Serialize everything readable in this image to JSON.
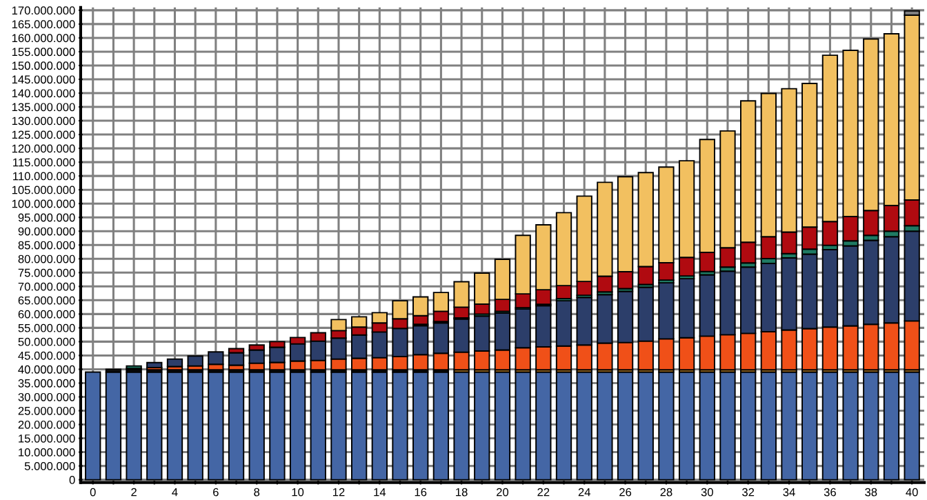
{
  "chart_data": {
    "type": "bar",
    "stacked": true,
    "grid": true,
    "categories": [
      "0",
      null,
      "2",
      null,
      "4",
      null,
      "6",
      null,
      "8",
      null,
      "10",
      null,
      "12",
      null,
      "14",
      null,
      "16",
      null,
      "18",
      null,
      "20",
      null,
      "22",
      null,
      "24",
      null,
      "26",
      null,
      "28",
      null,
      "30",
      null,
      "32",
      null,
      "34",
      null,
      "36",
      null,
      "38",
      null,
      "40"
    ],
    "ylim": [
      -1000000,
      171000000
    ],
    "yticks": [
      0,
      {
        "value": 5000000,
        "label": "5.000.000"
      },
      {
        "value": 10000000,
        "label": "10.000.000"
      },
      {
        "value": 15000000,
        "label": "15.000.000"
      },
      {
        "value": 20000000,
        "label": "20.000.000"
      },
      {
        "value": 25000000,
        "label": "25.000.000"
      },
      {
        "value": 30000000,
        "label": "30.000.000"
      },
      {
        "value": 35000000,
        "label": "35.000.000"
      },
      {
        "value": 40000000,
        "label": "40.000.000"
      },
      {
        "value": 45000000,
        "label": "45.000.000"
      },
      {
        "value": 50000000,
        "label": "50.000.000"
      },
      {
        "value": 55000000,
        "label": "55.000.000"
      },
      {
        "value": 60000000,
        "label": "60.000.000"
      },
      {
        "value": 65000000,
        "label": "65.000.000"
      },
      {
        "value": 70000000,
        "label": "70.000.000"
      },
      {
        "value": 75000000,
        "label": "75.000.000"
      },
      {
        "value": 80000000,
        "label": "80.000.000"
      },
      {
        "value": 85000000,
        "label": "85.000.000"
      },
      {
        "value": 90000000,
        "label": "90.000.000"
      },
      {
        "value": 95000000,
        "label": "95.000.000"
      },
      {
        "value": 100000000,
        "label": "100.000.000"
      },
      {
        "value": 105000000,
        "label": "105.000.000"
      },
      {
        "value": 110000000,
        "label": "110.000.000"
      },
      {
        "value": 115000000,
        "label": "115.000.000"
      },
      {
        "value": 120000000,
        "label": "120.000.000"
      },
      {
        "value": 125000000,
        "label": "125.000.000"
      },
      {
        "value": 130000000,
        "label": "130.000.000"
      },
      {
        "value": 135000000,
        "label": "135.000.000"
      },
      {
        "value": 140000000,
        "label": "140.000.000"
      },
      {
        "value": 145000000,
        "label": "145.000.000"
      },
      {
        "value": 150000000,
        "label": "150.000.000"
      },
      {
        "value": 155000000,
        "label": "155.000.000"
      },
      {
        "value": 160000000,
        "label": "160.000.000"
      },
      {
        "value": 165000000,
        "label": "165.000.000"
      },
      {
        "value": 170000000,
        "label": "170.000.000"
      }
    ],
    "series": [
      {
        "color": "#4466a5",
        "values": [
          39000000,
          39000000,
          39000000,
          39000000,
          39000000,
          39000000,
          39000000,
          39000000,
          39000000,
          39000000,
          39000000,
          39000000,
          39000000,
          39000000,
          39000000,
          39000000,
          39000000,
          39000000,
          39000000,
          39000000,
          39000000,
          39000000,
          39000000,
          39000000,
          39000000,
          39000000,
          39000000,
          39000000,
          39000000,
          39000000,
          39000000,
          39000000,
          39000000,
          39000000,
          39000000,
          39000000,
          39000000,
          39000000,
          39000000,
          39000000,
          39000000
        ]
      },
      {
        "color": "#111111",
        "values": [
          null,
          1000000,
          800000,
          800000,
          800000,
          800000,
          800000,
          800000,
          800000,
          800000,
          800000,
          800000,
          800000,
          800000,
          800000,
          800000,
          800000,
          800000,
          null,
          null,
          null,
          null,
          null,
          null,
          null,
          null,
          null,
          null,
          null,
          null,
          null,
          null,
          null,
          null,
          null,
          null,
          null,
          null,
          null,
          null,
          null
        ]
      },
      {
        "color": "#f0a030",
        "values": [
          null,
          null,
          null,
          null,
          null,
          null,
          null,
          null,
          null,
          null,
          null,
          null,
          null,
          null,
          null,
          null,
          null,
          null,
          800000,
          800000,
          800000,
          800000,
          800000,
          800000,
          800000,
          800000,
          800000,
          800000,
          800000,
          800000,
          800000,
          800000,
          800000,
          800000,
          800000,
          800000,
          800000,
          800000,
          800000,
          800000,
          800000
        ]
      },
      {
        "color": "#f05018",
        "values": [
          null,
          null,
          500000,
          800000,
          1200000,
          1400000,
          2000000,
          1700000,
          2400000,
          2700000,
          3200000,
          3400000,
          3900000,
          4200000,
          4400000,
          4800000,
          5500000,
          6000000,
          6400000,
          6800000,
          7200000,
          8000000,
          8300000,
          8600000,
          9000000,
          9700000,
          9900000,
          10400000,
          11200000,
          11600000,
          12200000,
          12700000,
          13200000,
          13800000,
          14400000,
          14900000,
          15500000,
          15900000,
          16500000,
          17000000,
          17700000
        ]
      },
      {
        "color": "#2c3e6a",
        "values": [
          null,
          null,
          null,
          1800000,
          2700000,
          3600000,
          4500000,
          4500000,
          4800000,
          5500000,
          6200000,
          7000000,
          7600000,
          8400000,
          9300000,
          10200000,
          10500000,
          11000000,
          12000000,
          12700000,
          13400000,
          14000000,
          14900000,
          16400000,
          17200000,
          17500000,
          18500000,
          19500000,
          20300000,
          21400000,
          22200000,
          23000000,
          24000000,
          24700000,
          26100000,
          27000000,
          28000000,
          29000000,
          30400000,
          31200000,
          32500000
        ]
      },
      {
        "color": "#1f7a63",
        "values": [
          null,
          null,
          900000,
          null,
          null,
          null,
          null,
          null,
          null,
          null,
          null,
          null,
          null,
          null,
          null,
          null,
          500000,
          500000,
          400000,
          700000,
          600000,
          500000,
          500000,
          800000,
          800000,
          1000000,
          1000000,
          1000000,
          1000000,
          1000000,
          1200000,
          1500000,
          1500000,
          1800000,
          1600000,
          1800000,
          1600000,
          1800000,
          1800000,
          2000000,
          2000000
        ]
      },
      {
        "color": "#b00a10",
        "values": [
          null,
          null,
          null,
          null,
          null,
          null,
          null,
          1500000,
          1800000,
          2000000,
          2300000,
          3000000,
          2700000,
          2900000,
          3300000,
          3500000,
          3100000,
          3700000,
          3900000,
          3600000,
          4300000,
          5000000,
          5300000,
          4700000,
          5000000,
          5700000,
          6100000,
          6500000,
          6300000,
          6700000,
          6900000,
          7000000,
          7500000,
          7900000,
          7800000,
          8000000,
          8600000,
          8800000,
          9000000,
          9300000,
          9300000
        ]
      },
      {
        "color": "#f2c060",
        "values": [
          null,
          null,
          null,
          null,
          null,
          null,
          null,
          null,
          null,
          null,
          null,
          null,
          4000000,
          3700000,
          3700000,
          6500000,
          6800000,
          6800000,
          9200000,
          11200000,
          14500000,
          21200000,
          23500000,
          26400000,
          30900000,
          34000000,
          34400000,
          34000000,
          34600000,
          35000000,
          40900000,
          42300000,
          51200000,
          51900000,
          51900000,
          52000000,
          60200000,
          60200000,
          62100000,
          62200000,
          66900000
        ]
      },
      {
        "color": "#808080",
        "values": [
          null,
          null,
          null,
          null,
          null,
          null,
          null,
          null,
          null,
          null,
          null,
          null,
          null,
          null,
          null,
          null,
          null,
          null,
          null,
          null,
          null,
          null,
          null,
          null,
          null,
          null,
          null,
          null,
          null,
          null,
          null,
          null,
          null,
          null,
          null,
          null,
          null,
          null,
          null,
          null,
          1600000
        ]
      }
    ]
  }
}
